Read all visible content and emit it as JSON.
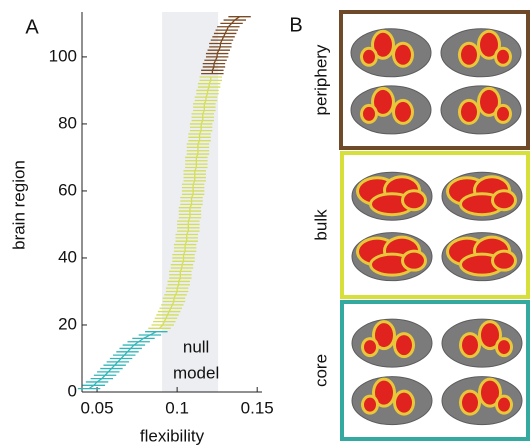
{
  "panel_labels": [
    "A",
    "B"
  ],
  "chart_data": {
    "type": "errorbar-scatter",
    "xlabel": "flexibility",
    "ylabel": "brain region",
    "annotation": [
      "null",
      "model"
    ],
    "null_band": [
      0.0906,
      0.1256
    ],
    "xlim": [
      0.0406,
      0.153
    ],
    "xticks": [
      0.05,
      {
        "value": 0.1,
        "label": "0.1"
      },
      0.15
    ],
    "ylim": [
      0,
      113.4
    ],
    "yticks": [
      0,
      20,
      40,
      60,
      80,
      100
    ],
    "series": [
      {
        "color": "#33b5b8",
        "error": 0.007,
        "y": [
          1,
          2,
          3,
          4,
          5,
          6,
          7,
          8,
          9,
          10,
          11,
          12,
          13,
          14,
          15,
          16,
          17,
          18
        ],
        "x": [
          0.045,
          0.048,
          0.05,
          0.053,
          0.055,
          0.057,
          0.059,
          0.061,
          0.063,
          0.065,
          0.067,
          0.069,
          0.071,
          0.073,
          0.076,
          0.079,
          0.083,
          0.087
        ]
      },
      {
        "color": "#d4de58",
        "error": 0.007,
        "y": [
          19,
          20,
          21,
          22,
          23,
          24,
          25,
          26,
          27,
          28,
          29,
          30,
          31,
          32,
          33,
          34,
          35,
          36,
          37,
          38,
          39,
          40,
          41,
          42,
          43,
          44,
          45,
          46,
          47,
          48,
          49,
          50,
          51,
          52,
          53,
          54,
          55,
          56,
          57,
          58,
          59,
          60,
          61,
          62,
          63,
          64,
          65,
          66,
          67,
          68,
          69,
          70,
          71,
          72,
          73,
          74,
          75,
          76,
          77,
          78,
          79,
          80,
          81,
          82,
          83,
          84,
          85,
          86,
          87,
          88,
          89,
          90,
          91,
          92,
          93,
          94
        ],
        "x": [
          0.089,
          0.091,
          0.092,
          0.093,
          0.094,
          0.095,
          0.096,
          0.097,
          0.098,
          0.098,
          0.099,
          0.1,
          0.1,
          0.101,
          0.101,
          0.102,
          0.102,
          0.102,
          0.103,
          0.103,
          0.104,
          0.104,
          0.104,
          0.105,
          0.105,
          0.105,
          0.106,
          0.106,
          0.106,
          0.107,
          0.107,
          0.107,
          0.107,
          0.108,
          0.108,
          0.108,
          0.108,
          0.109,
          0.109,
          0.109,
          0.11,
          0.11,
          0.11,
          0.11,
          0.111,
          0.111,
          0.111,
          0.111,
          0.112,
          0.112,
          0.112,
          0.112,
          0.113,
          0.113,
          0.113,
          0.113,
          0.114,
          0.114,
          0.114,
          0.115,
          0.115,
          0.115,
          0.116,
          0.116,
          0.116,
          0.117,
          0.117,
          0.117,
          0.118,
          0.118,
          0.119,
          0.119,
          0.12,
          0.12,
          0.121,
          0.121
        ]
      },
      {
        "color": "#7a4a24",
        "error": 0.007,
        "y": [
          95,
          96,
          97,
          98,
          99,
          100,
          101,
          102,
          103,
          104,
          105,
          106,
          107,
          108,
          109,
          110,
          111,
          112
        ],
        "x": [
          0.122,
          0.122,
          0.123,
          0.123,
          0.124,
          0.125,
          0.125,
          0.126,
          0.127,
          0.127,
          0.128,
          0.129,
          0.13,
          0.131,
          0.132,
          0.134,
          0.136,
          0.139
        ]
      }
    ]
  },
  "panel_b": {
    "groups": [
      {
        "label": "periphery",
        "color": "#6e4a2a"
      },
      {
        "label": "bulk",
        "color": "#d7df3a"
      },
      {
        "label": "core",
        "color": "#33a9a0"
      }
    ]
  }
}
